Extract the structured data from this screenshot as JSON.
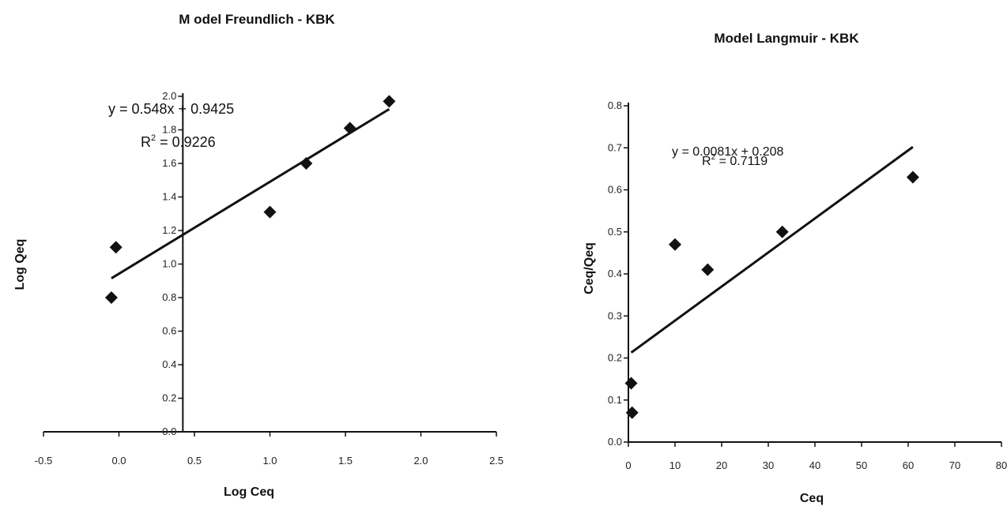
{
  "chart_data": [
    {
      "type": "scatter",
      "title": "M odel Freundlich - KBK",
      "xlabel": "Log Ceq",
      "ylabel": "Log Qeq",
      "xlim": [
        -0.5,
        2.5
      ],
      "ylim": [
        0.0,
        2.0
      ],
      "x_tick_labels": [
        "-0.5",
        "0.0",
        "0.5",
        "1.0",
        "1.5",
        "2.0",
        "2.5"
      ],
      "y_tick_labels": [
        "0.0",
        "0.2",
        "0.4",
        "0.6",
        "0.8",
        "1.0",
        "1.2",
        "1.4",
        "1.6",
        "1.8",
        "2.0"
      ],
      "x_ticks": [
        -0.5,
        0.0,
        0.5,
        1.0,
        1.5,
        2.0,
        2.5
      ],
      "y_ticks": [
        0.0,
        0.2,
        0.4,
        0.6,
        0.8,
        1.0,
        1.2,
        1.4,
        1.6,
        1.8,
        2.0
      ],
      "x": [
        -0.05,
        -0.02,
        1.0,
        1.24,
        1.53,
        1.79
      ],
      "y": [
        0.8,
        1.1,
        1.31,
        1.6,
        1.81,
        1.97
      ],
      "trendline": {
        "slope": 0.548,
        "intercept": 0.9425,
        "x_range": [
          -0.05,
          1.79
        ]
      },
      "equation_text": "y = 0.548x + 0.9425",
      "r2_label": "R",
      "r2_sup": "2",
      "r2_value": " = 0.9226",
      "grid": false,
      "marker": "diamond",
      "marker_color": "#111111"
    },
    {
      "type": "scatter",
      "title": "Model Langmuir - KBK",
      "xlabel": "Ceq",
      "ylabel": "Ceq/Qeq",
      "xlim": [
        0,
        80
      ],
      "ylim": [
        0.0,
        0.8
      ],
      "x_tick_labels": [
        "0",
        "10",
        "20",
        "30",
        "40",
        "50",
        "60",
        "70",
        "80"
      ],
      "y_tick_labels": [
        "0.0",
        "0.1",
        "0.2",
        "0.3",
        "0.4",
        "0.5",
        "0.6",
        "0.7",
        "0.8"
      ],
      "x_ticks": [
        0,
        10,
        20,
        30,
        40,
        50,
        60,
        70,
        80
      ],
      "y_ticks": [
        0.0,
        0.1,
        0.2,
        0.3,
        0.4,
        0.5,
        0.6,
        0.7,
        0.8
      ],
      "x": [
        0.6,
        0.8,
        10.0,
        17.0,
        33.0,
        61.0
      ],
      "y": [
        0.14,
        0.07,
        0.47,
        0.41,
        0.5,
        0.63
      ],
      "trendline": {
        "slope": 0.0081,
        "intercept": 0.208,
        "x_range": [
          0.6,
          61.0
        ]
      },
      "equation_text": "y = 0.0081x + 0.208",
      "r2_label": "R",
      "r2_sup": "2",
      "r2_value": " = 0.7119",
      "grid": false,
      "marker": "diamond",
      "marker_color": "#111111"
    }
  ]
}
